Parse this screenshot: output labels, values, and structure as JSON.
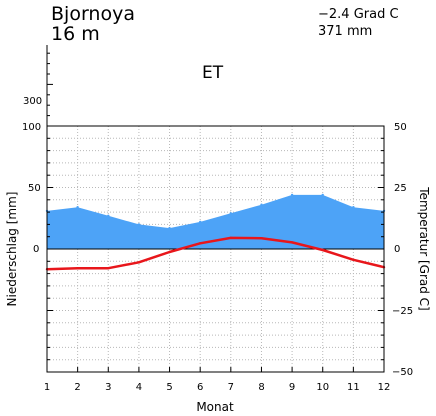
{
  "header": {
    "station": "Bjornoya",
    "elevation": "16  m",
    "mean_temp": "−2.4  Grad C",
    "annual_precip": "371 mm",
    "climate_class": "ET"
  },
  "chart_data": {
    "type": "area",
    "x": [
      1,
      2,
      3,
      4,
      5,
      6,
      7,
      8,
      9,
      10,
      11,
      12
    ],
    "xlabel": "Monat",
    "ylabel_left": "Niederschlag [mm]",
    "ylabel_right": "Temperatur [Grad C]",
    "left_ticks": [
      "300",
      "100",
      "50",
      "0"
    ],
    "right_ticks": [
      "50",
      "25",
      "0",
      "−25",
      "−50"
    ],
    "x_ticks": [
      "1",
      "2",
      "3",
      "4",
      "5",
      "6",
      "7",
      "8",
      "9",
      "10",
      "11",
      "12"
    ],
    "ylim_right": [
      -50,
      50
    ],
    "grid": true,
    "series": [
      {
        "kind": "precipitation",
        "values": [
          31,
          34,
          27,
          20,
          17,
          22,
          29,
          36,
          44,
          44,
          34,
          31
        ],
        "color": "#4da3f7"
      },
      {
        "kind": "temperature",
        "values": [
          -8.2,
          -7.8,
          -7.8,
          -5.4,
          -1.2,
          2.3,
          4.5,
          4.4,
          2.7,
          -0.4,
          -4.4,
          -7.4
        ],
        "color": "#e8161b"
      }
    ]
  }
}
